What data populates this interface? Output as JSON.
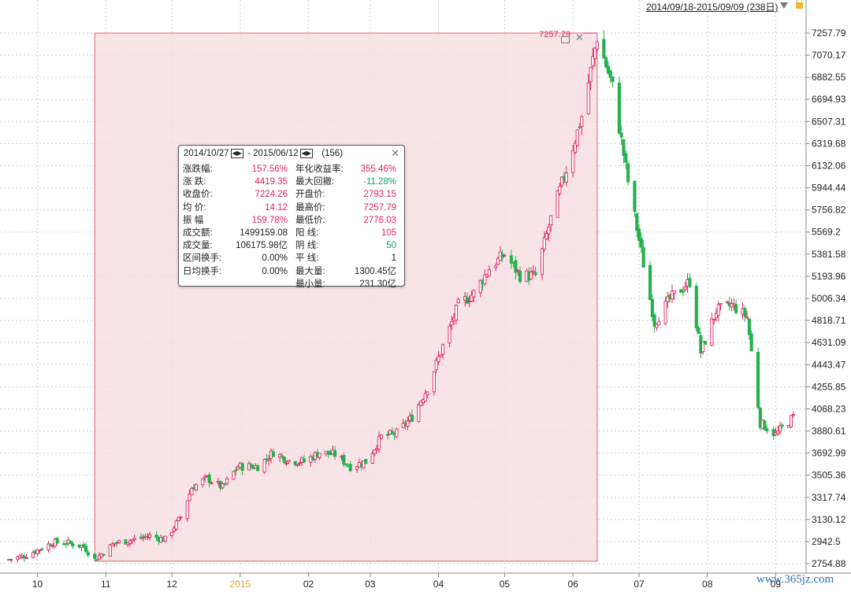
{
  "header": {
    "range_label": "2014/09/18-2015/09/09 (238日)",
    "dropdown_icon": "triangle-down-icon",
    "lock_icon": "lock-icon"
  },
  "selection": {
    "high_marker": "7257.79",
    "close_icon": "close-icon",
    "copy_icon": "copy-icon"
  },
  "stats_panel": {
    "start_date": "2014/10/27",
    "end_date": "2015/06/12",
    "separator": " - ",
    "count": "(156)",
    "left": [
      {
        "label": "涨跌幅:",
        "value": "157.56%",
        "color": "red"
      },
      {
        "label": "涨    跌:",
        "value": "4419.35",
        "color": "red"
      },
      {
        "label": "收盘价:",
        "value": "7224.26",
        "color": "red"
      },
      {
        "label": "均    价:",
        "value": "14.12",
        "color": "red"
      },
      {
        "label": "振    幅",
        "value": "159.78%",
        "color": "red"
      },
      {
        "label": "成交额:",
        "value": "1499159.08",
        "color": "blk"
      },
      {
        "label": "成交量:",
        "value": "106175.98亿",
        "color": "blk"
      },
      {
        "label": "区间换手:",
        "value": "0.00%",
        "color": "blk"
      },
      {
        "label": "日均换手:",
        "value": "0.00%",
        "color": "blk"
      }
    ],
    "right": [
      {
        "label": "年化收益率:",
        "value": "355.46%",
        "color": "red"
      },
      {
        "label": "最大回撤:",
        "value": "-11.28%",
        "color": "green"
      },
      {
        "label": "开盘价:",
        "value": "2793.15",
        "color": "red"
      },
      {
        "label": "最高价:",
        "value": "7257.79",
        "color": "red"
      },
      {
        "label": "最低价:",
        "value": "2776.03",
        "color": "red"
      },
      {
        "label": "阳    线:",
        "value": "105",
        "color": "red"
      },
      {
        "label": "阴    线:",
        "value": "50",
        "color": "green"
      },
      {
        "label": "平    线:",
        "value": "1",
        "color": "blk"
      },
      {
        "label": "最大量:",
        "value": "1300.45亿",
        "color": "blk"
      },
      {
        "label": "最小量:",
        "value": "231.30亿",
        "color": "blk"
      }
    ]
  },
  "watermark": "www.365jz.com",
  "colors": {
    "up": "#e0245e",
    "down": "#22b14c",
    "selection_fill": "#f6dde1",
    "selection_border": "#e06070",
    "grid": "#cfcfcf"
  },
  "chart_data": {
    "type": "candlestick",
    "y_ticks": [
      "7257.79",
      "7070.17",
      "6882.55",
      "6694.93",
      "6507.31",
      "6319.68",
      "6132.06",
      "5944.44",
      "5756.82",
      "5569.2",
      "5381.58",
      "5193.96",
      "5006.34",
      "4818.71",
      "4631.09",
      "4443.47",
      "4255.85",
      "4068.23",
      "3880.61",
      "3692.99",
      "3505.36",
      "3317.74",
      "3130.12",
      "2942.5",
      "2754.88"
    ],
    "ylim": [
      2754.88,
      7257.79
    ],
    "x_ticks": [
      {
        "label": "10",
        "date": "2014-10-01"
      },
      {
        "label": "11",
        "date": "2014-11-01"
      },
      {
        "label": "12",
        "date": "2014-12-01"
      },
      {
        "label": "2015",
        "date": "2015-01-01",
        "highlight": true
      },
      {
        "label": "02",
        "date": "2015-02-01"
      },
      {
        "label": "03",
        "date": "2015-03-01"
      },
      {
        "label": "04",
        "date": "2015-04-01"
      },
      {
        "label": "05",
        "date": "2015-05-01"
      },
      {
        "label": "06",
        "date": "2015-06-01"
      },
      {
        "label": "07",
        "date": "2015-07-01"
      },
      {
        "label": "08",
        "date": "2015-08-01"
      },
      {
        "label": "09",
        "date": "2015-09-01"
      }
    ],
    "close_path": [
      [
        "2014-09-18",
        2790
      ],
      [
        "2014-09-25",
        2820
      ],
      [
        "2014-10-01",
        2870
      ],
      [
        "2014-10-08",
        2935
      ],
      [
        "2014-10-15",
        2930
      ],
      [
        "2014-10-22",
        2900
      ],
      [
        "2014-10-27",
        2790
      ],
      [
        "2014-11-05",
        2930
      ],
      [
        "2014-11-14",
        2960
      ],
      [
        "2014-11-21",
        2990
      ],
      [
        "2014-11-28",
        2960
      ],
      [
        "2014-12-05",
        3150
      ],
      [
        "2014-12-10",
        3400
      ],
      [
        "2014-12-17",
        3480
      ],
      [
        "2014-12-24",
        3400
      ],
      [
        "2014-12-31",
        3580
      ],
      [
        "2015-01-09",
        3580
      ],
      [
        "2015-01-16",
        3700
      ],
      [
        "2015-01-23",
        3630
      ],
      [
        "2015-01-30",
        3620
      ],
      [
        "2015-02-06",
        3700
      ],
      [
        "2015-02-13",
        3680
      ],
      [
        "2015-02-20",
        3580
      ],
      [
        "2015-02-27",
        3620
      ],
      [
        "2015-03-06",
        3830
      ],
      [
        "2015-03-13",
        3860
      ],
      [
        "2015-03-20",
        4000
      ],
      [
        "2015-03-27",
        4250
      ],
      [
        "2015-04-03",
        4600
      ],
      [
        "2015-04-10",
        4950
      ],
      [
        "2015-04-17",
        5050
      ],
      [
        "2015-04-24",
        5260
      ],
      [
        "2015-05-01",
        5380
      ],
      [
        "2015-05-08",
        5200
      ],
      [
        "2015-05-15",
        5200
      ],
      [
        "2015-05-22",
        5680
      ],
      [
        "2015-05-29",
        6100
      ],
      [
        "2015-06-05",
        6550
      ],
      [
        "2015-06-12",
        7224
      ],
      [
        "2015-06-19",
        6800
      ],
      [
        "2015-06-26",
        6000
      ],
      [
        "2015-07-03",
        5300
      ],
      [
        "2015-07-08",
        4800
      ],
      [
        "2015-07-15",
        5000
      ],
      [
        "2015-07-24",
        5150
      ],
      [
        "2015-07-29",
        4550
      ],
      [
        "2015-08-05",
        4900
      ],
      [
        "2015-08-12",
        4950
      ],
      [
        "2015-08-19",
        4850
      ],
      [
        "2015-08-25",
        3950
      ],
      [
        "2015-09-01",
        3850
      ],
      [
        "2015-09-09",
        4000
      ]
    ],
    "selection": {
      "start": "2014-10-27",
      "end": "2015-06-12",
      "low": 2776.03,
      "high": 7257.79
    }
  }
}
